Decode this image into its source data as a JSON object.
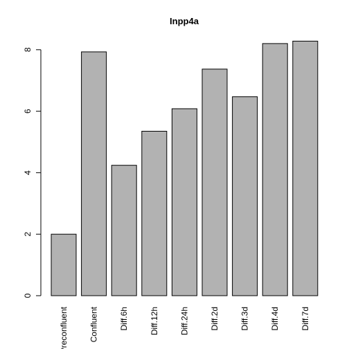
{
  "chart_data": {
    "type": "bar",
    "title": "Inpp4a",
    "xlabel": "",
    "ylabel": "",
    "categories": [
      "Preconfluent",
      "Confluent",
      "Diff.6h",
      "Diff.12h",
      "Diff.24h",
      "Diff.2d",
      "Diff.3d",
      "Diff.4d",
      "Diff.7d"
    ],
    "values": [
      2.0,
      7.93,
      4.24,
      5.35,
      6.08,
      7.37,
      6.47,
      8.2,
      8.28
    ],
    "ylim": [
      0,
      8.28
    ],
    "yticks": [
      0,
      2,
      4,
      6,
      8
    ],
    "grid": false,
    "colors": {
      "bar_fill": "#b2b2b2",
      "bar_stroke": "#000000"
    }
  }
}
